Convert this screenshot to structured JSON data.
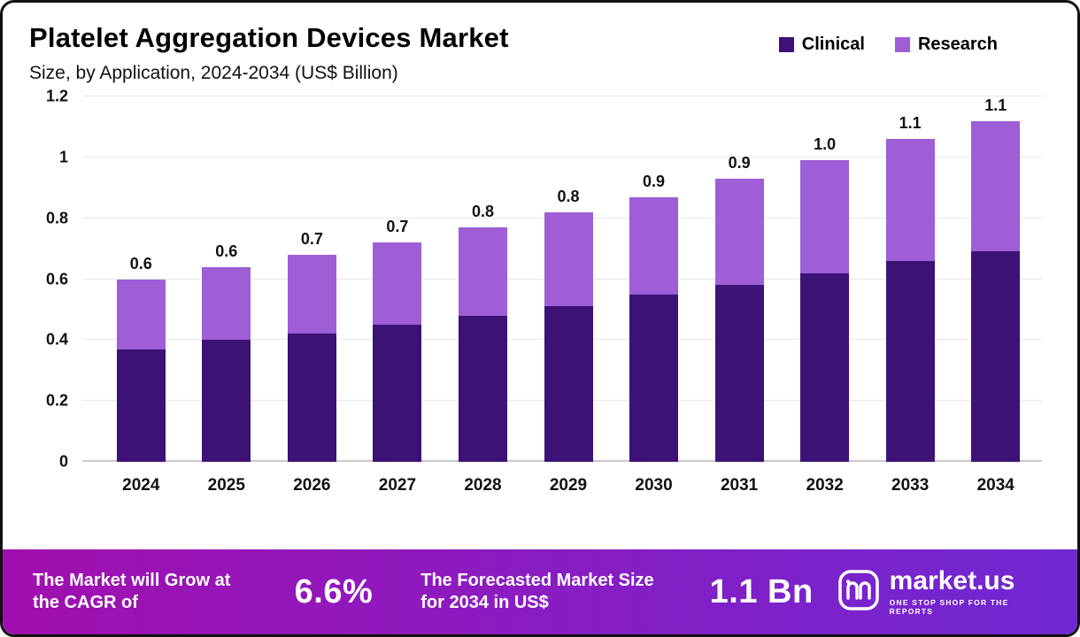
{
  "title": "Platelet Aggregation Devices Market",
  "subtitle": "Size, by Application, 2024-2034 (US$ Billion)",
  "legend": [
    {
      "label": "Clinical",
      "color": "#3c1277"
    },
    {
      "label": "Research",
      "color": "#9e5ed6"
    }
  ],
  "chart_data": {
    "type": "bar",
    "stacked": true,
    "title": "Platelet Aggregation Devices Market Size, by Application, 2024-2034 (US$ Billion)",
    "categories": [
      "2024",
      "2025",
      "2026",
      "2027",
      "2028",
      "2029",
      "2030",
      "2031",
      "2032",
      "2033",
      "2034"
    ],
    "series": [
      {
        "name": "Clinical",
        "color": "#3c1277",
        "values": [
          0.37,
          0.4,
          0.42,
          0.45,
          0.48,
          0.51,
          0.55,
          0.58,
          0.62,
          0.66,
          0.7
        ]
      },
      {
        "name": "Research",
        "color": "#9e5ed6",
        "values": [
          0.23,
          0.24,
          0.26,
          0.27,
          0.29,
          0.31,
          0.32,
          0.35,
          0.37,
          0.4,
          0.43
        ]
      }
    ],
    "total_labels": [
      "0.6",
      "0.6",
      "0.7",
      "0.7",
      "0.8",
      "0.8",
      "0.9",
      "0.9",
      "1.0",
      "1.1",
      "1.1"
    ],
    "xlabel": "",
    "ylabel": "",
    "ylim": [
      0,
      1.2
    ],
    "yticks": [
      0,
      0.2,
      0.4,
      0.6,
      0.8,
      1,
      1.2
    ],
    "ytick_labels": [
      "0",
      "0.2",
      "0.4",
      "0.6",
      "0.8",
      "1",
      "1.2"
    ],
    "grid": true,
    "legend_position": "top-right"
  },
  "footer": {
    "cagr_label": "The Market will Grow at the CAGR of",
    "cagr_value": "6.6%",
    "forecast_label": "The Forecasted Market Size for 2034 in US$",
    "forecast_value": "1.1 Bn",
    "brand": "market.us",
    "brand_tagline": "ONE STOP SHOP FOR THE REPORTS"
  }
}
